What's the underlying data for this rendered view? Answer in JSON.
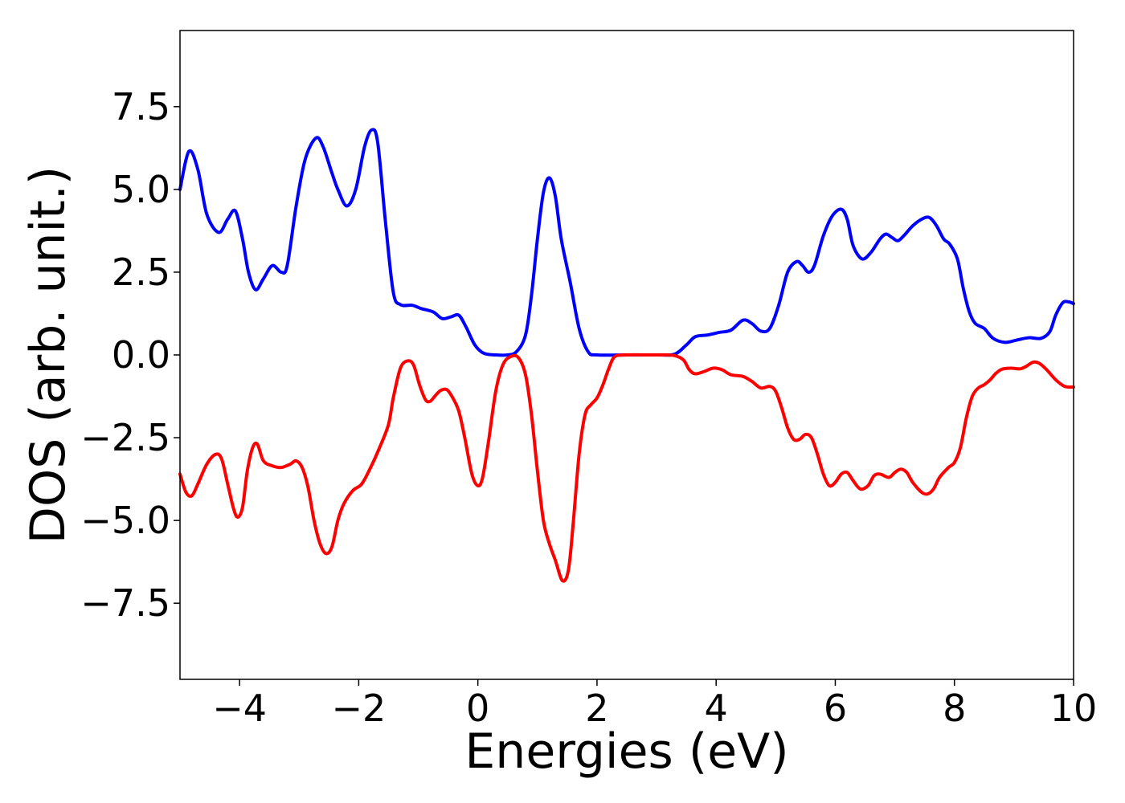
{
  "chart_data": {
    "type": "line",
    "title": "",
    "xlabel": "Energies (eV)",
    "ylabel": "DOS (arb. unit.)",
    "xlim": [
      -5,
      10
    ],
    "ylim": [
      -9.8,
      9.8
    ],
    "grid": false,
    "legend": "none",
    "x_ticks": [
      -4,
      -2,
      0,
      2,
      4,
      6,
      8,
      10
    ],
    "x_tick_labels": [
      "−4",
      "−2",
      "0",
      "2",
      "4",
      "6",
      "8",
      "10"
    ],
    "y_ticks": [
      -7.5,
      -5.0,
      -2.5,
      0.0,
      2.5,
      5.0,
      7.5
    ],
    "y_tick_labels": [
      "−7.5",
      "−5.0",
      "−2.5",
      "0.0",
      "2.5",
      "5.0",
      "7.5"
    ],
    "series": [
      {
        "color": "#0000ff",
        "points": [
          [
            -5.0,
            5.0
          ],
          [
            -4.85,
            6.15
          ],
          [
            -4.7,
            5.6
          ],
          [
            -4.55,
            4.25
          ],
          [
            -4.35,
            3.7
          ],
          [
            -4.2,
            4.1
          ],
          [
            -4.07,
            4.35
          ],
          [
            -3.95,
            3.5
          ],
          [
            -3.85,
            2.5
          ],
          [
            -3.73,
            1.97
          ],
          [
            -3.6,
            2.3
          ],
          [
            -3.45,
            2.7
          ],
          [
            -3.3,
            2.5
          ],
          [
            -3.2,
            2.7
          ],
          [
            -3.05,
            4.5
          ],
          [
            -2.9,
            5.9
          ],
          [
            -2.72,
            6.55
          ],
          [
            -2.6,
            6.3
          ],
          [
            -2.45,
            5.5
          ],
          [
            -2.35,
            5.0
          ],
          [
            -2.2,
            4.5
          ],
          [
            -2.05,
            5.0
          ],
          [
            -1.9,
            6.3
          ],
          [
            -1.78,
            6.8
          ],
          [
            -1.68,
            6.4
          ],
          [
            -1.55,
            4.0
          ],
          [
            -1.42,
            1.9
          ],
          [
            -1.3,
            1.52
          ],
          [
            -1.1,
            1.5
          ],
          [
            -0.95,
            1.4
          ],
          [
            -0.75,
            1.3
          ],
          [
            -0.6,
            1.1
          ],
          [
            -0.45,
            1.15
          ],
          [
            -0.32,
            1.2
          ],
          [
            -0.2,
            0.85
          ],
          [
            -0.05,
            0.3
          ],
          [
            0.1,
            0.05
          ],
          [
            0.3,
            0.0
          ],
          [
            0.5,
            0.0
          ],
          [
            0.65,
            0.1
          ],
          [
            0.8,
            0.6
          ],
          [
            0.9,
            1.8
          ],
          [
            1.0,
            3.5
          ],
          [
            1.1,
            4.9
          ],
          [
            1.2,
            5.35
          ],
          [
            1.3,
            4.8
          ],
          [
            1.4,
            3.5
          ],
          [
            1.55,
            2.2
          ],
          [
            1.7,
            0.8
          ],
          [
            1.85,
            0.1
          ],
          [
            2.0,
            0.0
          ],
          [
            2.5,
            0.0
          ],
          [
            3.0,
            0.0
          ],
          [
            3.3,
            0.02
          ],
          [
            3.5,
            0.3
          ],
          [
            3.65,
            0.55
          ],
          [
            3.85,
            0.6
          ],
          [
            4.05,
            0.68
          ],
          [
            4.25,
            0.75
          ],
          [
            4.45,
            1.05
          ],
          [
            4.6,
            0.95
          ],
          [
            4.75,
            0.72
          ],
          [
            4.9,
            0.8
          ],
          [
            5.05,
            1.5
          ],
          [
            5.2,
            2.5
          ],
          [
            5.35,
            2.82
          ],
          [
            5.45,
            2.7
          ],
          [
            5.55,
            2.5
          ],
          [
            5.65,
            2.7
          ],
          [
            5.8,
            3.6
          ],
          [
            5.95,
            4.2
          ],
          [
            6.1,
            4.4
          ],
          [
            6.2,
            4.1
          ],
          [
            6.3,
            3.3
          ],
          [
            6.45,
            2.9
          ],
          [
            6.6,
            3.1
          ],
          [
            6.75,
            3.5
          ],
          [
            6.85,
            3.65
          ],
          [
            6.95,
            3.55
          ],
          [
            7.05,
            3.45
          ],
          [
            7.15,
            3.6
          ],
          [
            7.3,
            3.9
          ],
          [
            7.45,
            4.1
          ],
          [
            7.58,
            4.15
          ],
          [
            7.7,
            3.9
          ],
          [
            7.82,
            3.5
          ],
          [
            7.92,
            3.35
          ],
          [
            8.05,
            2.9
          ],
          [
            8.15,
            2.0
          ],
          [
            8.25,
            1.3
          ],
          [
            8.35,
            0.95
          ],
          [
            8.5,
            0.8
          ],
          [
            8.65,
            0.5
          ],
          [
            8.85,
            0.38
          ],
          [
            9.05,
            0.45
          ],
          [
            9.25,
            0.52
          ],
          [
            9.45,
            0.5
          ],
          [
            9.6,
            0.7
          ],
          [
            9.7,
            1.2
          ],
          [
            9.82,
            1.58
          ],
          [
            9.92,
            1.6
          ],
          [
            10.0,
            1.55
          ]
        ]
      },
      {
        "color": "#ff0000",
        "points": [
          [
            -5.0,
            -3.6
          ],
          [
            -4.9,
            -4.15
          ],
          [
            -4.8,
            -4.25
          ],
          [
            -4.7,
            -3.9
          ],
          [
            -4.55,
            -3.3
          ],
          [
            -4.4,
            -3.0
          ],
          [
            -4.3,
            -3.15
          ],
          [
            -4.2,
            -3.9
          ],
          [
            -4.1,
            -4.65
          ],
          [
            -4.03,
            -4.9
          ],
          [
            -3.95,
            -4.6
          ],
          [
            -3.87,
            -3.5
          ],
          [
            -3.78,
            -2.8
          ],
          [
            -3.7,
            -2.7
          ],
          [
            -3.6,
            -3.2
          ],
          [
            -3.45,
            -3.35
          ],
          [
            -3.3,
            -3.4
          ],
          [
            -3.15,
            -3.3
          ],
          [
            -3.05,
            -3.2
          ],
          [
            -2.95,
            -3.4
          ],
          [
            -2.85,
            -4.0
          ],
          [
            -2.75,
            -5.0
          ],
          [
            -2.65,
            -5.7
          ],
          [
            -2.55,
            -6.0
          ],
          [
            -2.45,
            -5.8
          ],
          [
            -2.35,
            -5.0
          ],
          [
            -2.25,
            -4.5
          ],
          [
            -2.1,
            -4.1
          ],
          [
            -1.95,
            -3.9
          ],
          [
            -1.8,
            -3.4
          ],
          [
            -1.65,
            -2.8
          ],
          [
            -1.5,
            -2.1
          ],
          [
            -1.42,
            -1.3
          ],
          [
            -1.3,
            -0.4
          ],
          [
            -1.18,
            -0.18
          ],
          [
            -1.08,
            -0.3
          ],
          [
            -0.98,
            -0.9
          ],
          [
            -0.88,
            -1.35
          ],
          [
            -0.8,
            -1.4
          ],
          [
            -0.7,
            -1.2
          ],
          [
            -0.62,
            -1.07
          ],
          [
            -0.52,
            -1.05
          ],
          [
            -0.42,
            -1.3
          ],
          [
            -0.32,
            -1.7
          ],
          [
            -0.22,
            -2.5
          ],
          [
            -0.1,
            -3.6
          ],
          [
            0.0,
            -3.95
          ],
          [
            0.08,
            -3.7
          ],
          [
            0.18,
            -2.6
          ],
          [
            0.3,
            -1.1
          ],
          [
            0.42,
            -0.3
          ],
          [
            0.55,
            -0.05
          ],
          [
            0.68,
            -0.08
          ],
          [
            0.8,
            -0.6
          ],
          [
            0.9,
            -1.8
          ],
          [
            1.0,
            -3.5
          ],
          [
            1.1,
            -5.0
          ],
          [
            1.2,
            -5.7
          ],
          [
            1.3,
            -6.2
          ],
          [
            1.42,
            -6.82
          ],
          [
            1.52,
            -6.5
          ],
          [
            1.6,
            -5.1
          ],
          [
            1.7,
            -3.0
          ],
          [
            1.8,
            -1.8
          ],
          [
            1.9,
            -1.5
          ],
          [
            2.0,
            -1.3
          ],
          [
            2.1,
            -0.9
          ],
          [
            2.2,
            -0.4
          ],
          [
            2.3,
            -0.05
          ],
          [
            2.5,
            0.0
          ],
          [
            2.8,
            0.0
          ],
          [
            3.1,
            0.0
          ],
          [
            3.3,
            -0.02
          ],
          [
            3.45,
            -0.15
          ],
          [
            3.55,
            -0.45
          ],
          [
            3.65,
            -0.57
          ],
          [
            3.8,
            -0.5
          ],
          [
            3.95,
            -0.4
          ],
          [
            4.1,
            -0.45
          ],
          [
            4.25,
            -0.6
          ],
          [
            4.45,
            -0.65
          ],
          [
            4.6,
            -0.8
          ],
          [
            4.75,
            -1.0
          ],
          [
            4.9,
            -0.95
          ],
          [
            5.0,
            -1.1
          ],
          [
            5.1,
            -1.6
          ],
          [
            5.2,
            -2.2
          ],
          [
            5.3,
            -2.55
          ],
          [
            5.4,
            -2.55
          ],
          [
            5.5,
            -2.4
          ],
          [
            5.6,
            -2.5
          ],
          [
            5.7,
            -3.0
          ],
          [
            5.8,
            -3.6
          ],
          [
            5.9,
            -3.95
          ],
          [
            6.0,
            -3.85
          ],
          [
            6.1,
            -3.6
          ],
          [
            6.2,
            -3.55
          ],
          [
            6.3,
            -3.8
          ],
          [
            6.42,
            -4.05
          ],
          [
            6.55,
            -3.95
          ],
          [
            6.65,
            -3.65
          ],
          [
            6.75,
            -3.6
          ],
          [
            6.9,
            -3.7
          ],
          [
            7.0,
            -3.55
          ],
          [
            7.1,
            -3.45
          ],
          [
            7.2,
            -3.55
          ],
          [
            7.3,
            -3.85
          ],
          [
            7.45,
            -4.15
          ],
          [
            7.55,
            -4.2
          ],
          [
            7.65,
            -4.05
          ],
          [
            7.75,
            -3.7
          ],
          [
            7.9,
            -3.4
          ],
          [
            8.0,
            -3.25
          ],
          [
            8.1,
            -2.8
          ],
          [
            8.2,
            -1.9
          ],
          [
            8.3,
            -1.25
          ],
          [
            8.4,
            -1.0
          ],
          [
            8.5,
            -0.9
          ],
          [
            8.6,
            -0.75
          ],
          [
            8.7,
            -0.55
          ],
          [
            8.8,
            -0.43
          ],
          [
            8.95,
            -0.4
          ],
          [
            9.1,
            -0.42
          ],
          [
            9.2,
            -0.35
          ],
          [
            9.32,
            -0.22
          ],
          [
            9.42,
            -0.25
          ],
          [
            9.55,
            -0.45
          ],
          [
            9.7,
            -0.75
          ],
          [
            9.85,
            -0.95
          ],
          [
            10.0,
            -0.97
          ]
        ]
      }
    ]
  }
}
